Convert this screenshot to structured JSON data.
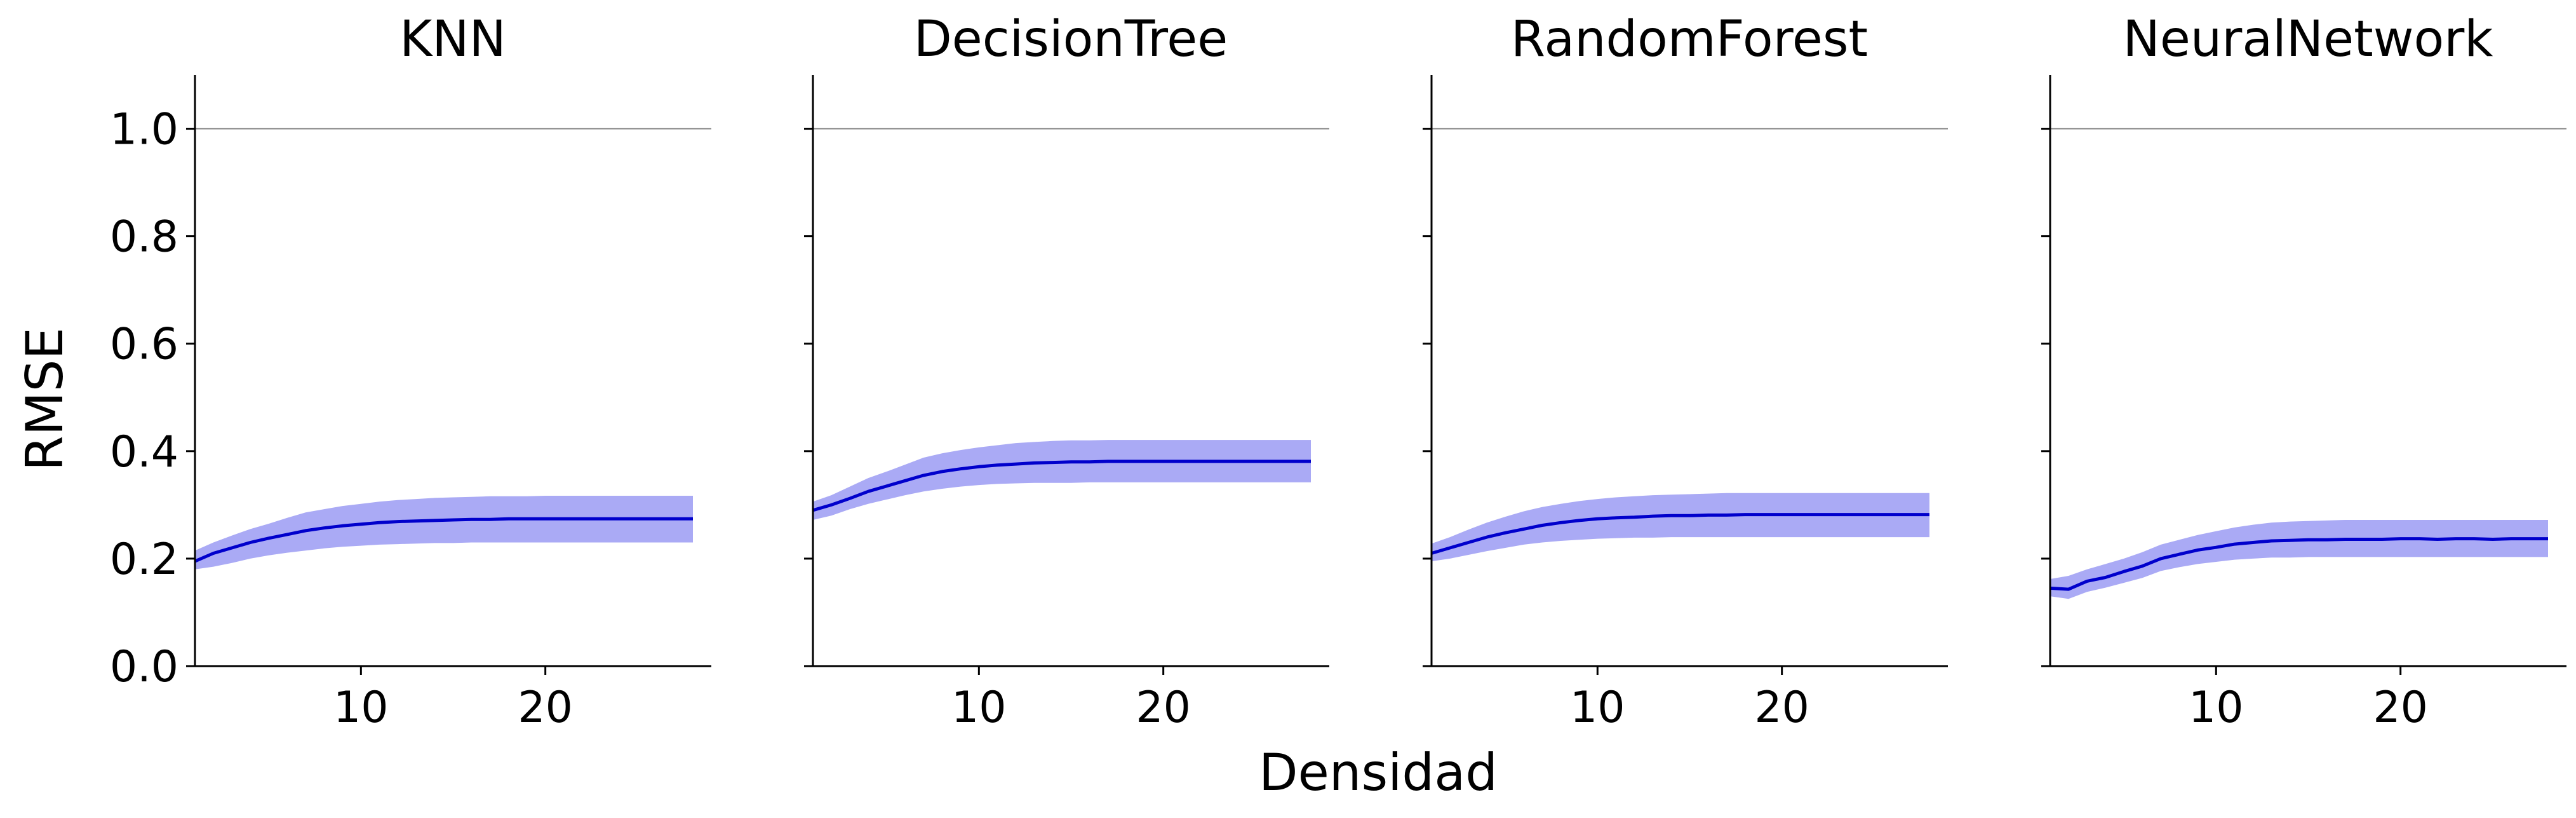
{
  "figure": {
    "xlabel": "Densidad",
    "ylabel": "RMSE"
  },
  "chart_data": [
    {
      "type": "line",
      "title": "KNN",
      "xlim": [
        1,
        29
      ],
      "ylim": [
        0,
        1.1
      ],
      "xticks": [
        10,
        20
      ],
      "yticks": [
        0.0,
        0.2,
        0.4,
        0.6,
        0.8,
        1.0
      ],
      "reference_line": 1.0,
      "grid": false,
      "line_color": "#0000cc",
      "band_color": "#aaaaf5",
      "x": [
        1,
        2,
        3,
        4,
        5,
        6,
        7,
        8,
        9,
        10,
        11,
        12,
        13,
        14,
        15,
        16,
        17,
        18,
        19,
        20,
        21,
        22,
        23,
        24,
        25,
        26,
        27,
        28
      ],
      "mean": [
        0.195,
        0.21,
        0.22,
        0.23,
        0.238,
        0.245,
        0.252,
        0.257,
        0.261,
        0.264,
        0.267,
        0.269,
        0.27,
        0.271,
        0.272,
        0.273,
        0.273,
        0.274,
        0.274,
        0.274,
        0.274,
        0.274,
        0.274,
        0.274,
        0.274,
        0.274,
        0.274,
        0.274
      ],
      "lower": [
        0.18,
        0.185,
        0.192,
        0.2,
        0.206,
        0.211,
        0.215,
        0.219,
        0.222,
        0.224,
        0.226,
        0.227,
        0.228,
        0.229,
        0.229,
        0.23,
        0.23,
        0.23,
        0.23,
        0.23,
        0.23,
        0.23,
        0.23,
        0.23,
        0.23,
        0.23,
        0.23,
        0.23
      ],
      "upper": [
        0.215,
        0.23,
        0.243,
        0.255,
        0.265,
        0.276,
        0.286,
        0.292,
        0.298,
        0.302,
        0.306,
        0.309,
        0.311,
        0.313,
        0.314,
        0.315,
        0.316,
        0.316,
        0.316,
        0.317,
        0.317,
        0.317,
        0.317,
        0.317,
        0.317,
        0.317,
        0.317,
        0.317
      ]
    },
    {
      "type": "line",
      "title": "DecisionTree",
      "xlim": [
        1,
        29
      ],
      "ylim": [
        0,
        1.1
      ],
      "xticks": [
        10,
        20
      ],
      "yticks": [
        0.0,
        0.2,
        0.4,
        0.6,
        0.8,
        1.0
      ],
      "reference_line": 1.0,
      "grid": false,
      "line_color": "#0000cc",
      "band_color": "#aaaaf5",
      "x": [
        1,
        2,
        3,
        4,
        5,
        6,
        7,
        8,
        9,
        10,
        11,
        12,
        13,
        14,
        15,
        16,
        17,
        18,
        19,
        20,
        21,
        22,
        23,
        24,
        25,
        26,
        27,
        28
      ],
      "mean": [
        0.29,
        0.3,
        0.312,
        0.325,
        0.335,
        0.345,
        0.355,
        0.362,
        0.367,
        0.371,
        0.374,
        0.376,
        0.378,
        0.379,
        0.38,
        0.38,
        0.381,
        0.381,
        0.381,
        0.381,
        0.381,
        0.381,
        0.381,
        0.381,
        0.381,
        0.381,
        0.381,
        0.381
      ],
      "lower": [
        0.272,
        0.28,
        0.292,
        0.302,
        0.31,
        0.318,
        0.325,
        0.33,
        0.334,
        0.337,
        0.339,
        0.34,
        0.341,
        0.341,
        0.341,
        0.342,
        0.342,
        0.342,
        0.342,
        0.342,
        0.342,
        0.342,
        0.342,
        0.342,
        0.342,
        0.342,
        0.342,
        0.342
      ],
      "upper": [
        0.306,
        0.318,
        0.334,
        0.35,
        0.362,
        0.375,
        0.388,
        0.396,
        0.402,
        0.407,
        0.411,
        0.415,
        0.417,
        0.419,
        0.42,
        0.42,
        0.421,
        0.421,
        0.421,
        0.421,
        0.421,
        0.421,
        0.421,
        0.421,
        0.421,
        0.421,
        0.421,
        0.421
      ]
    },
    {
      "type": "line",
      "title": "RandomForest",
      "xlim": [
        1,
        29
      ],
      "ylim": [
        0,
        1.1
      ],
      "xticks": [
        10,
        20
      ],
      "yticks": [
        0.0,
        0.2,
        0.4,
        0.6,
        0.8,
        1.0
      ],
      "reference_line": 1.0,
      "grid": false,
      "line_color": "#0000cc",
      "band_color": "#aaaaf5",
      "x": [
        1,
        2,
        3,
        4,
        5,
        6,
        7,
        8,
        9,
        10,
        11,
        12,
        13,
        14,
        15,
        16,
        17,
        18,
        19,
        20,
        21,
        22,
        23,
        24,
        25,
        26,
        27,
        28
      ],
      "mean": [
        0.21,
        0.22,
        0.23,
        0.24,
        0.248,
        0.255,
        0.262,
        0.267,
        0.271,
        0.274,
        0.276,
        0.277,
        0.279,
        0.28,
        0.28,
        0.281,
        0.281,
        0.282,
        0.282,
        0.282,
        0.282,
        0.282,
        0.282,
        0.282,
        0.282,
        0.282,
        0.282,
        0.282
      ],
      "lower": [
        0.195,
        0.2,
        0.207,
        0.214,
        0.22,
        0.226,
        0.23,
        0.233,
        0.235,
        0.237,
        0.238,
        0.239,
        0.239,
        0.24,
        0.24,
        0.24,
        0.24,
        0.24,
        0.24,
        0.24,
        0.24,
        0.24,
        0.24,
        0.24,
        0.24,
        0.24,
        0.24,
        0.24
      ],
      "upper": [
        0.228,
        0.24,
        0.254,
        0.267,
        0.278,
        0.288,
        0.296,
        0.302,
        0.307,
        0.311,
        0.314,
        0.316,
        0.318,
        0.319,
        0.32,
        0.321,
        0.322,
        0.322,
        0.322,
        0.322,
        0.322,
        0.322,
        0.322,
        0.322,
        0.322,
        0.322,
        0.322,
        0.322
      ]
    },
    {
      "type": "line",
      "title": "NeuralNetwork",
      "xlim": [
        1,
        29
      ],
      "ylim": [
        0,
        1.1
      ],
      "xticks": [
        10,
        20
      ],
      "yticks": [
        0.0,
        0.2,
        0.4,
        0.6,
        0.8,
        1.0
      ],
      "reference_line": 1.0,
      "grid": false,
      "line_color": "#0000cc",
      "band_color": "#aaaaf5",
      "x": [
        1,
        2,
        3,
        4,
        5,
        6,
        7,
        8,
        9,
        10,
        11,
        12,
        13,
        14,
        15,
        16,
        17,
        18,
        19,
        20,
        21,
        22,
        23,
        24,
        25,
        26,
        27,
        28
      ],
      "mean": [
        0.145,
        0.143,
        0.158,
        0.165,
        0.176,
        0.186,
        0.2,
        0.208,
        0.216,
        0.221,
        0.227,
        0.23,
        0.233,
        0.234,
        0.235,
        0.235,
        0.236,
        0.236,
        0.236,
        0.237,
        0.237,
        0.236,
        0.237,
        0.237,
        0.236,
        0.237,
        0.237,
        0.237
      ],
      "lower": [
        0.13,
        0.125,
        0.138,
        0.146,
        0.155,
        0.164,
        0.177,
        0.184,
        0.19,
        0.194,
        0.198,
        0.2,
        0.202,
        0.202,
        0.203,
        0.203,
        0.203,
        0.203,
        0.203,
        0.203,
        0.203,
        0.203,
        0.203,
        0.203,
        0.203,
        0.203,
        0.203,
        0.203
      ],
      "upper": [
        0.162,
        0.168,
        0.18,
        0.19,
        0.2,
        0.212,
        0.226,
        0.235,
        0.244,
        0.251,
        0.258,
        0.263,
        0.267,
        0.269,
        0.27,
        0.271,
        0.272,
        0.272,
        0.272,
        0.272,
        0.272,
        0.272,
        0.272,
        0.272,
        0.272,
        0.272,
        0.272,
        0.272
      ]
    }
  ]
}
